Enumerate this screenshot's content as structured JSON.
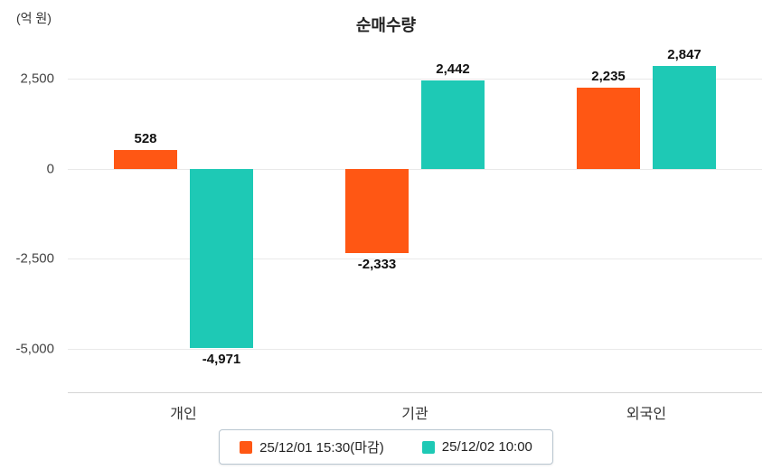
{
  "chart_data": {
    "type": "bar",
    "title": "순매수량",
    "unit_label": "(억 원)",
    "categories": [
      "개인",
      "기관",
      "외국인"
    ],
    "series": [
      {
        "name": "25/12/01 15:30(마감)",
        "color": "#FF5714",
        "values": [
          528,
          -2333,
          2235
        ]
      },
      {
        "name": "25/12/02 10:00",
        "color": "#1EC9B5",
        "values": [
          -4971,
          2442,
          2847
        ]
      }
    ],
    "value_labels": [
      [
        "528",
        "-2,333",
        "2,235"
      ],
      [
        "-4,971",
        "2,442",
        "2,847"
      ]
    ],
    "y_ticks": [
      2500,
      0,
      -2500,
      -5000
    ],
    "y_tick_labels": [
      "2,500",
      "0",
      "-2,500",
      "-5,000"
    ],
    "ylim": [
      -6200,
      3300
    ],
    "grid": true,
    "legend_position": "bottom"
  }
}
